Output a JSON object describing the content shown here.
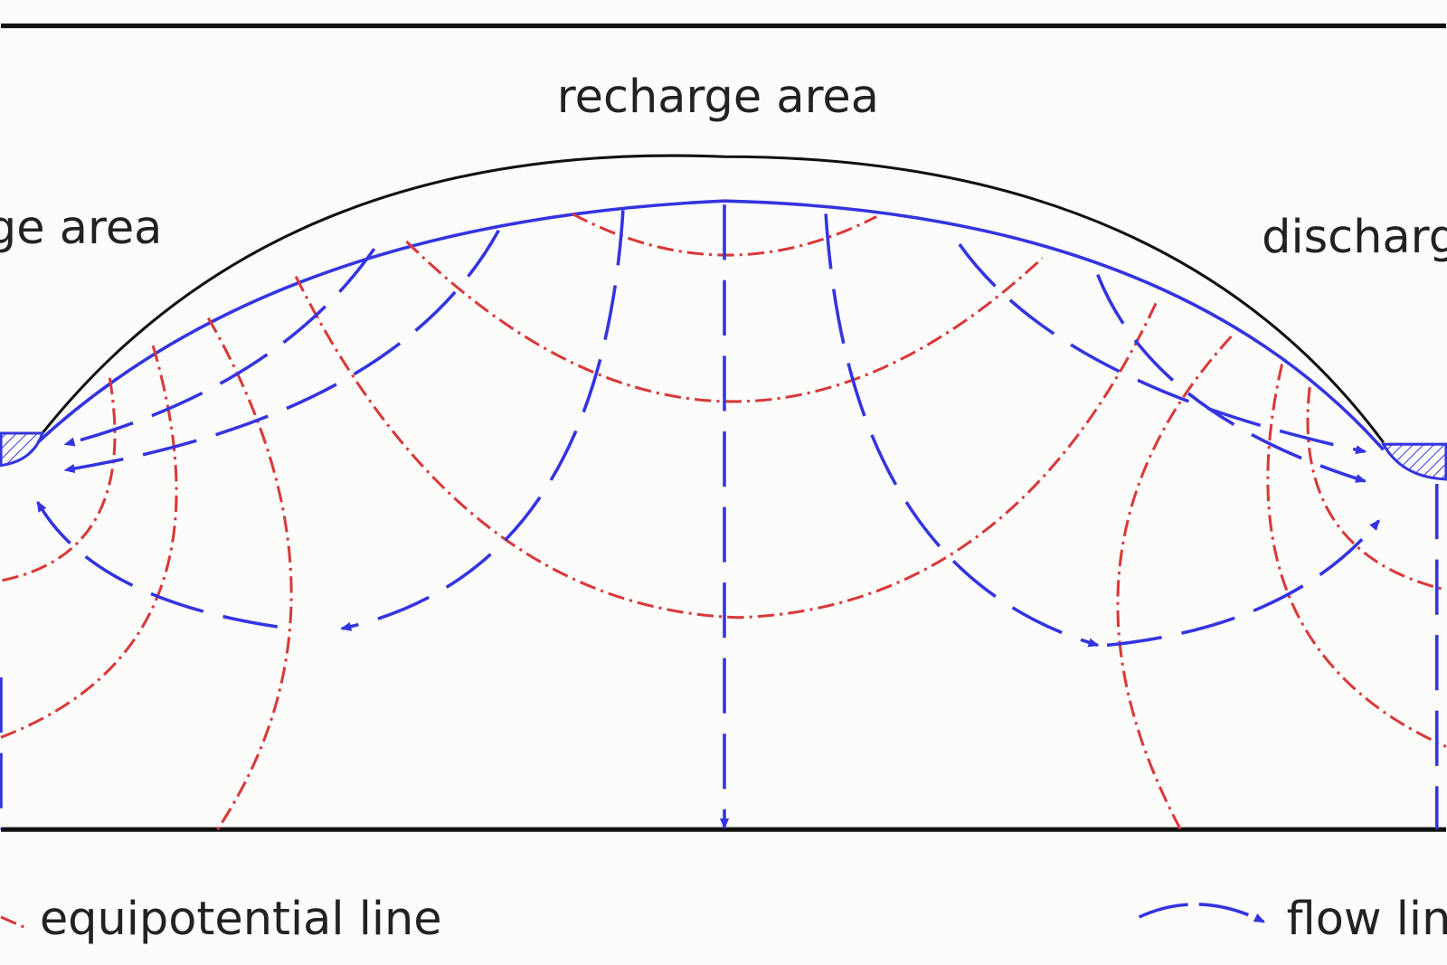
{
  "labels": {
    "top": "recharge area",
    "left": "ge area",
    "right": "discharg"
  },
  "legend": [
    {
      "label": "equipotential line"
    },
    {
      "label": "flow lin"
    }
  ]
}
